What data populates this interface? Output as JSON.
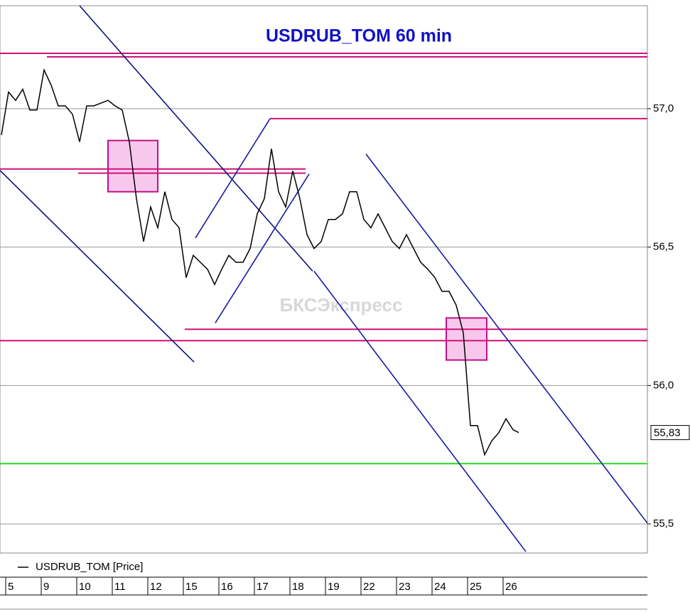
{
  "chart_data": {
    "type": "line",
    "title": "USDRUB_TOM 60 min",
    "watermark": "БКСЭкспресс",
    "xlim": [
      -0.16,
      18.06
    ],
    "ylim": [
      55.395,
      57.372
    ],
    "xticks": [
      {
        "value": 0,
        "label": "5"
      },
      {
        "value": 1,
        "label": "9"
      },
      {
        "value": 2,
        "label": "10"
      },
      {
        "value": 3,
        "label": "11"
      },
      {
        "value": 4,
        "label": "12"
      },
      {
        "value": 5,
        "label": "15"
      },
      {
        "value": 6,
        "label": "16"
      },
      {
        "value": 7,
        "label": "17"
      },
      {
        "value": 8,
        "label": "18"
      },
      {
        "value": 9,
        "label": "19"
      },
      {
        "value": 10,
        "label": "22"
      },
      {
        "value": 11,
        "label": "23"
      },
      {
        "value": 12,
        "label": "24"
      },
      {
        "value": 13,
        "label": "25"
      },
      {
        "value": 14,
        "label": "26"
      }
    ],
    "yticks": [
      {
        "value": 55.5,
        "label": "55,5"
      },
      {
        "value": 56,
        "label": "56,0"
      },
      {
        "value": 56.5,
        "label": "56,5"
      },
      {
        "value": 57,
        "label": "57,0"
      }
    ],
    "grid": true,
    "last_label": "55,83",
    "series": [
      {
        "name": "USDRUB_TOM [Price]",
        "color": "#000000",
        "x": [
          -0.12,
          0.08,
          0.28,
          0.48,
          0.68,
          0.88,
          1.08,
          1.28,
          1.48,
          1.68,
          1.88,
          2.08,
          2.28,
          2.48,
          2.68,
          2.88,
          3.08,
          3.28,
          3.48,
          3.68,
          3.88,
          4.08,
          4.28,
          4.48,
          4.68,
          4.88,
          5.08,
          5.28,
          5.48,
          5.68,
          5.88,
          6.08,
          6.28,
          6.48,
          6.68,
          6.88,
          7.08,
          7.28,
          7.48,
          7.68,
          7.88,
          8.08,
          8.28,
          8.48,
          8.68,
          8.88,
          9.08,
          9.28,
          9.48,
          9.68,
          9.88,
          10.08,
          10.28,
          10.48,
          10.68,
          10.88,
          11.08,
          11.28,
          11.48,
          11.68,
          11.88,
          12.08,
          12.28,
          12.48,
          12.68,
          12.88,
          13.08,
          13.28,
          13.48,
          13.68,
          13.88,
          14.08,
          14.28,
          14.44
        ],
        "values": [
          56.905,
          57.06,
          57.03,
          57.07,
          56.995,
          56.995,
          57.14,
          57.085,
          57.01,
          57.01,
          56.98,
          56.88,
          57.01,
          57.01,
          57.02,
          57.03,
          57.01,
          56.995,
          56.88,
          56.675,
          56.52,
          56.645,
          56.57,
          56.7,
          56.6,
          56.57,
          56.39,
          56.47,
          56.445,
          56.42,
          56.365,
          56.42,
          56.47,
          56.445,
          56.445,
          56.495,
          56.62,
          56.675,
          56.855,
          56.7,
          56.645,
          56.775,
          56.675,
          56.545,
          56.495,
          56.52,
          56.6,
          56.6,
          56.62,
          56.7,
          56.7,
          56.6,
          56.57,
          56.62,
          56.57,
          56.52,
          56.495,
          56.545,
          56.495,
          56.445,
          56.42,
          56.39,
          56.34,
          56.34,
          56.29,
          56.19,
          55.855,
          55.855,
          55.75,
          55.8,
          55.83,
          55.88,
          55.84,
          55.83
        ]
      }
    ],
    "levels": [
      {
        "value": 57.2,
        "from": -0.16,
        "to": 18.06,
        "color": "#d0107a"
      },
      {
        "value": 57.187,
        "from": 1.16,
        "to": 18.06,
        "color": "#d0107a"
      },
      {
        "value": 56.964,
        "from": 7.44,
        "to": 18.06,
        "color": "#d0107a"
      },
      {
        "value": 56.782,
        "from": -0.16,
        "to": 8.44,
        "color": "#d0107a"
      },
      {
        "value": 56.767,
        "from": 2.04,
        "to": 8.44,
        "color": "#d0107a"
      },
      {
        "value": 56.203,
        "from": 5.04,
        "to": 18.06,
        "color": "#d0107a"
      },
      {
        "value": 56.162,
        "from": -0.16,
        "to": 18.06,
        "color": "#d0107a"
      },
      {
        "value": 55.718,
        "from": -0.16,
        "to": 18.06,
        "color": "#22dd22"
      }
    ],
    "trendlines": [
      {
        "x": [
          2.08,
          8.64
        ],
        "y": [
          57.372,
          56.413
        ],
        "color": "#101080"
      },
      {
        "x": [
          -0.16,
          5.3
        ],
        "y": [
          56.777,
          56.085
        ],
        "color": "#101080"
      },
      {
        "x": [
          8.68,
          14.64
        ],
        "y": [
          56.413,
          55.4
        ],
        "color": "#1a1aa0"
      },
      {
        "x": [
          10.14,
          18.06
        ],
        "y": [
          56.836,
          55.503
        ],
        "color": "#1a1aa0"
      },
      {
        "x": [
          5.34,
          7.44
        ],
        "y": [
          56.533,
          56.964
        ],
        "color": "#1a1aa0"
      },
      {
        "x": [
          5.9,
          8.54
        ],
        "y": [
          56.226,
          56.764
        ],
        "color": "#1a1aa0"
      }
    ],
    "zones": [
      {
        "x": [
          2.88,
          4.28
        ],
        "y": [
          56.885,
          56.7
        ],
        "color": "#f8c8ec"
      },
      {
        "x": [
          12.4,
          13.54
        ],
        "y": [
          56.244,
          56.092
        ],
        "color": "#f8c8ec"
      }
    ]
  }
}
